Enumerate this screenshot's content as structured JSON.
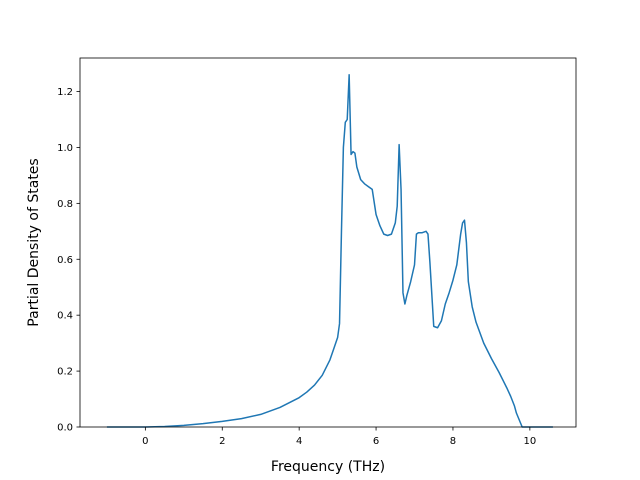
{
  "chart_data": {
    "type": "line",
    "title": "",
    "xlabel": "Frequency (THz)",
    "ylabel": "Partial Density of States",
    "xlim": [
      -1.7,
      11.2
    ],
    "ylim": [
      0.0,
      1.32
    ],
    "xticks": [
      0,
      2,
      4,
      6,
      8,
      10
    ],
    "yticks": [
      0.0,
      0.2,
      0.4,
      0.6,
      0.8,
      1.0,
      1.2
    ],
    "xtick_labels": [
      "0",
      "2",
      "4",
      "6",
      "8",
      "10"
    ],
    "ytick_labels": [
      "0.0",
      "0.2",
      "0.4",
      "0.6",
      "0.8",
      "1.0",
      "1.2"
    ],
    "grid": false,
    "legend": "none",
    "series_color": "#1f77b4",
    "series": [
      {
        "x": [
          -1.0,
          -0.5,
          0.0,
          0.5,
          1.0,
          1.5,
          2.0,
          2.5,
          3.0,
          3.5,
          4.0,
          4.2,
          4.4,
          4.6,
          4.8,
          4.9,
          5.0,
          5.05,
          5.1,
          5.15,
          5.2,
          5.25,
          5.3,
          5.35,
          5.4,
          5.45,
          5.5,
          5.6,
          5.7,
          5.8,
          5.9,
          6.0,
          6.05,
          6.1,
          6.2,
          6.3,
          6.4,
          6.5,
          6.55,
          6.6,
          6.65,
          6.7,
          6.75,
          6.8,
          6.9,
          7.0,
          7.05,
          7.1,
          7.2,
          7.3,
          7.35,
          7.4,
          7.5,
          7.6,
          7.7,
          7.8,
          7.9,
          8.0,
          8.1,
          8.2,
          8.25,
          8.3,
          8.35,
          8.4,
          8.5,
          8.6,
          8.8,
          9.0,
          9.2,
          9.4,
          9.5,
          9.6,
          9.65,
          9.8,
          10.0,
          10.3,
          10.6
        ],
        "y": [
          0.0,
          0.0,
          0.0,
          0.002,
          0.006,
          0.012,
          0.02,
          0.03,
          0.045,
          0.07,
          0.105,
          0.125,
          0.15,
          0.185,
          0.24,
          0.28,
          0.32,
          0.37,
          0.7,
          1.0,
          1.09,
          1.1,
          1.26,
          0.975,
          0.985,
          0.98,
          0.93,
          0.885,
          0.87,
          0.86,
          0.85,
          0.76,
          0.74,
          0.72,
          0.69,
          0.685,
          0.69,
          0.73,
          0.79,
          1.01,
          0.85,
          0.48,
          0.44,
          0.47,
          0.52,
          0.58,
          0.69,
          0.695,
          0.695,
          0.7,
          0.69,
          0.59,
          0.36,
          0.355,
          0.38,
          0.44,
          0.48,
          0.525,
          0.58,
          0.69,
          0.73,
          0.74,
          0.66,
          0.52,
          0.43,
          0.375,
          0.3,
          0.245,
          0.195,
          0.14,
          0.11,
          0.075,
          0.05,
          0.0,
          0.0,
          0.0,
          0.0
        ]
      }
    ]
  }
}
